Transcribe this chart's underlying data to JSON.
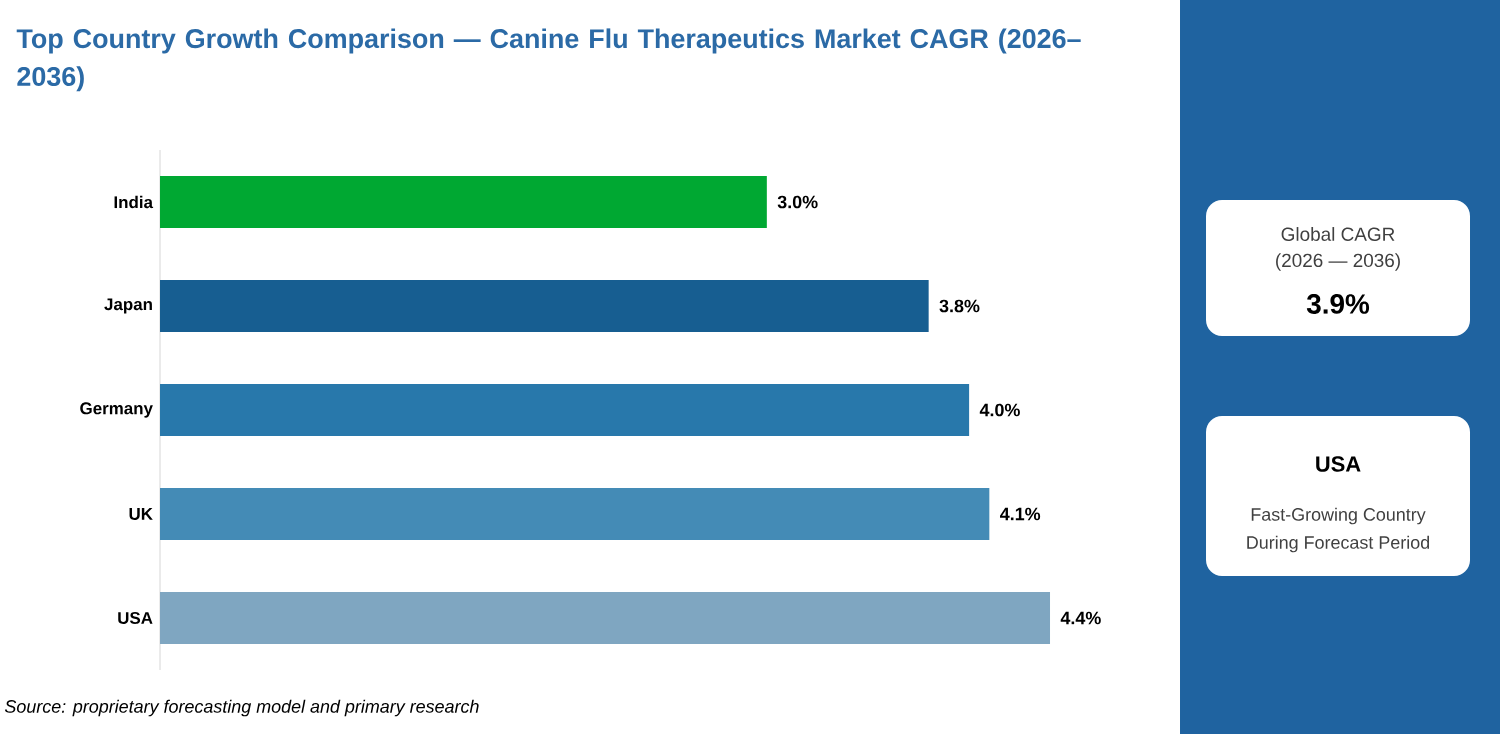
{
  "chart_data": {
    "type": "bar",
    "orientation": "horizontal",
    "title": "Top Country Growth Comparison — Canine Flu Therapeutics Market CAGR (2026–2036)",
    "categories": [
      "India",
      "Japan",
      "Germany",
      "UK",
      "USA"
    ],
    "values": [
      3.0,
      3.8,
      4.0,
      4.1,
      4.4
    ],
    "colors": [
      "#00a832",
      "#175e91",
      "#2878ab",
      "#448bb6",
      "#7fa6c1"
    ],
    "value_labels": [
      "3.0%",
      "3.8%",
      "4.0%",
      "4.1%",
      "4.4%"
    ],
    "annotations": [
      "Source: proprietary forecasting model and primary research",
      "Global CAGR",
      "(2026 — 2036)",
      "3.9%",
      "USA",
      "Fast-Growing Country",
      "During Forecast Period"
    ]
  }
}
